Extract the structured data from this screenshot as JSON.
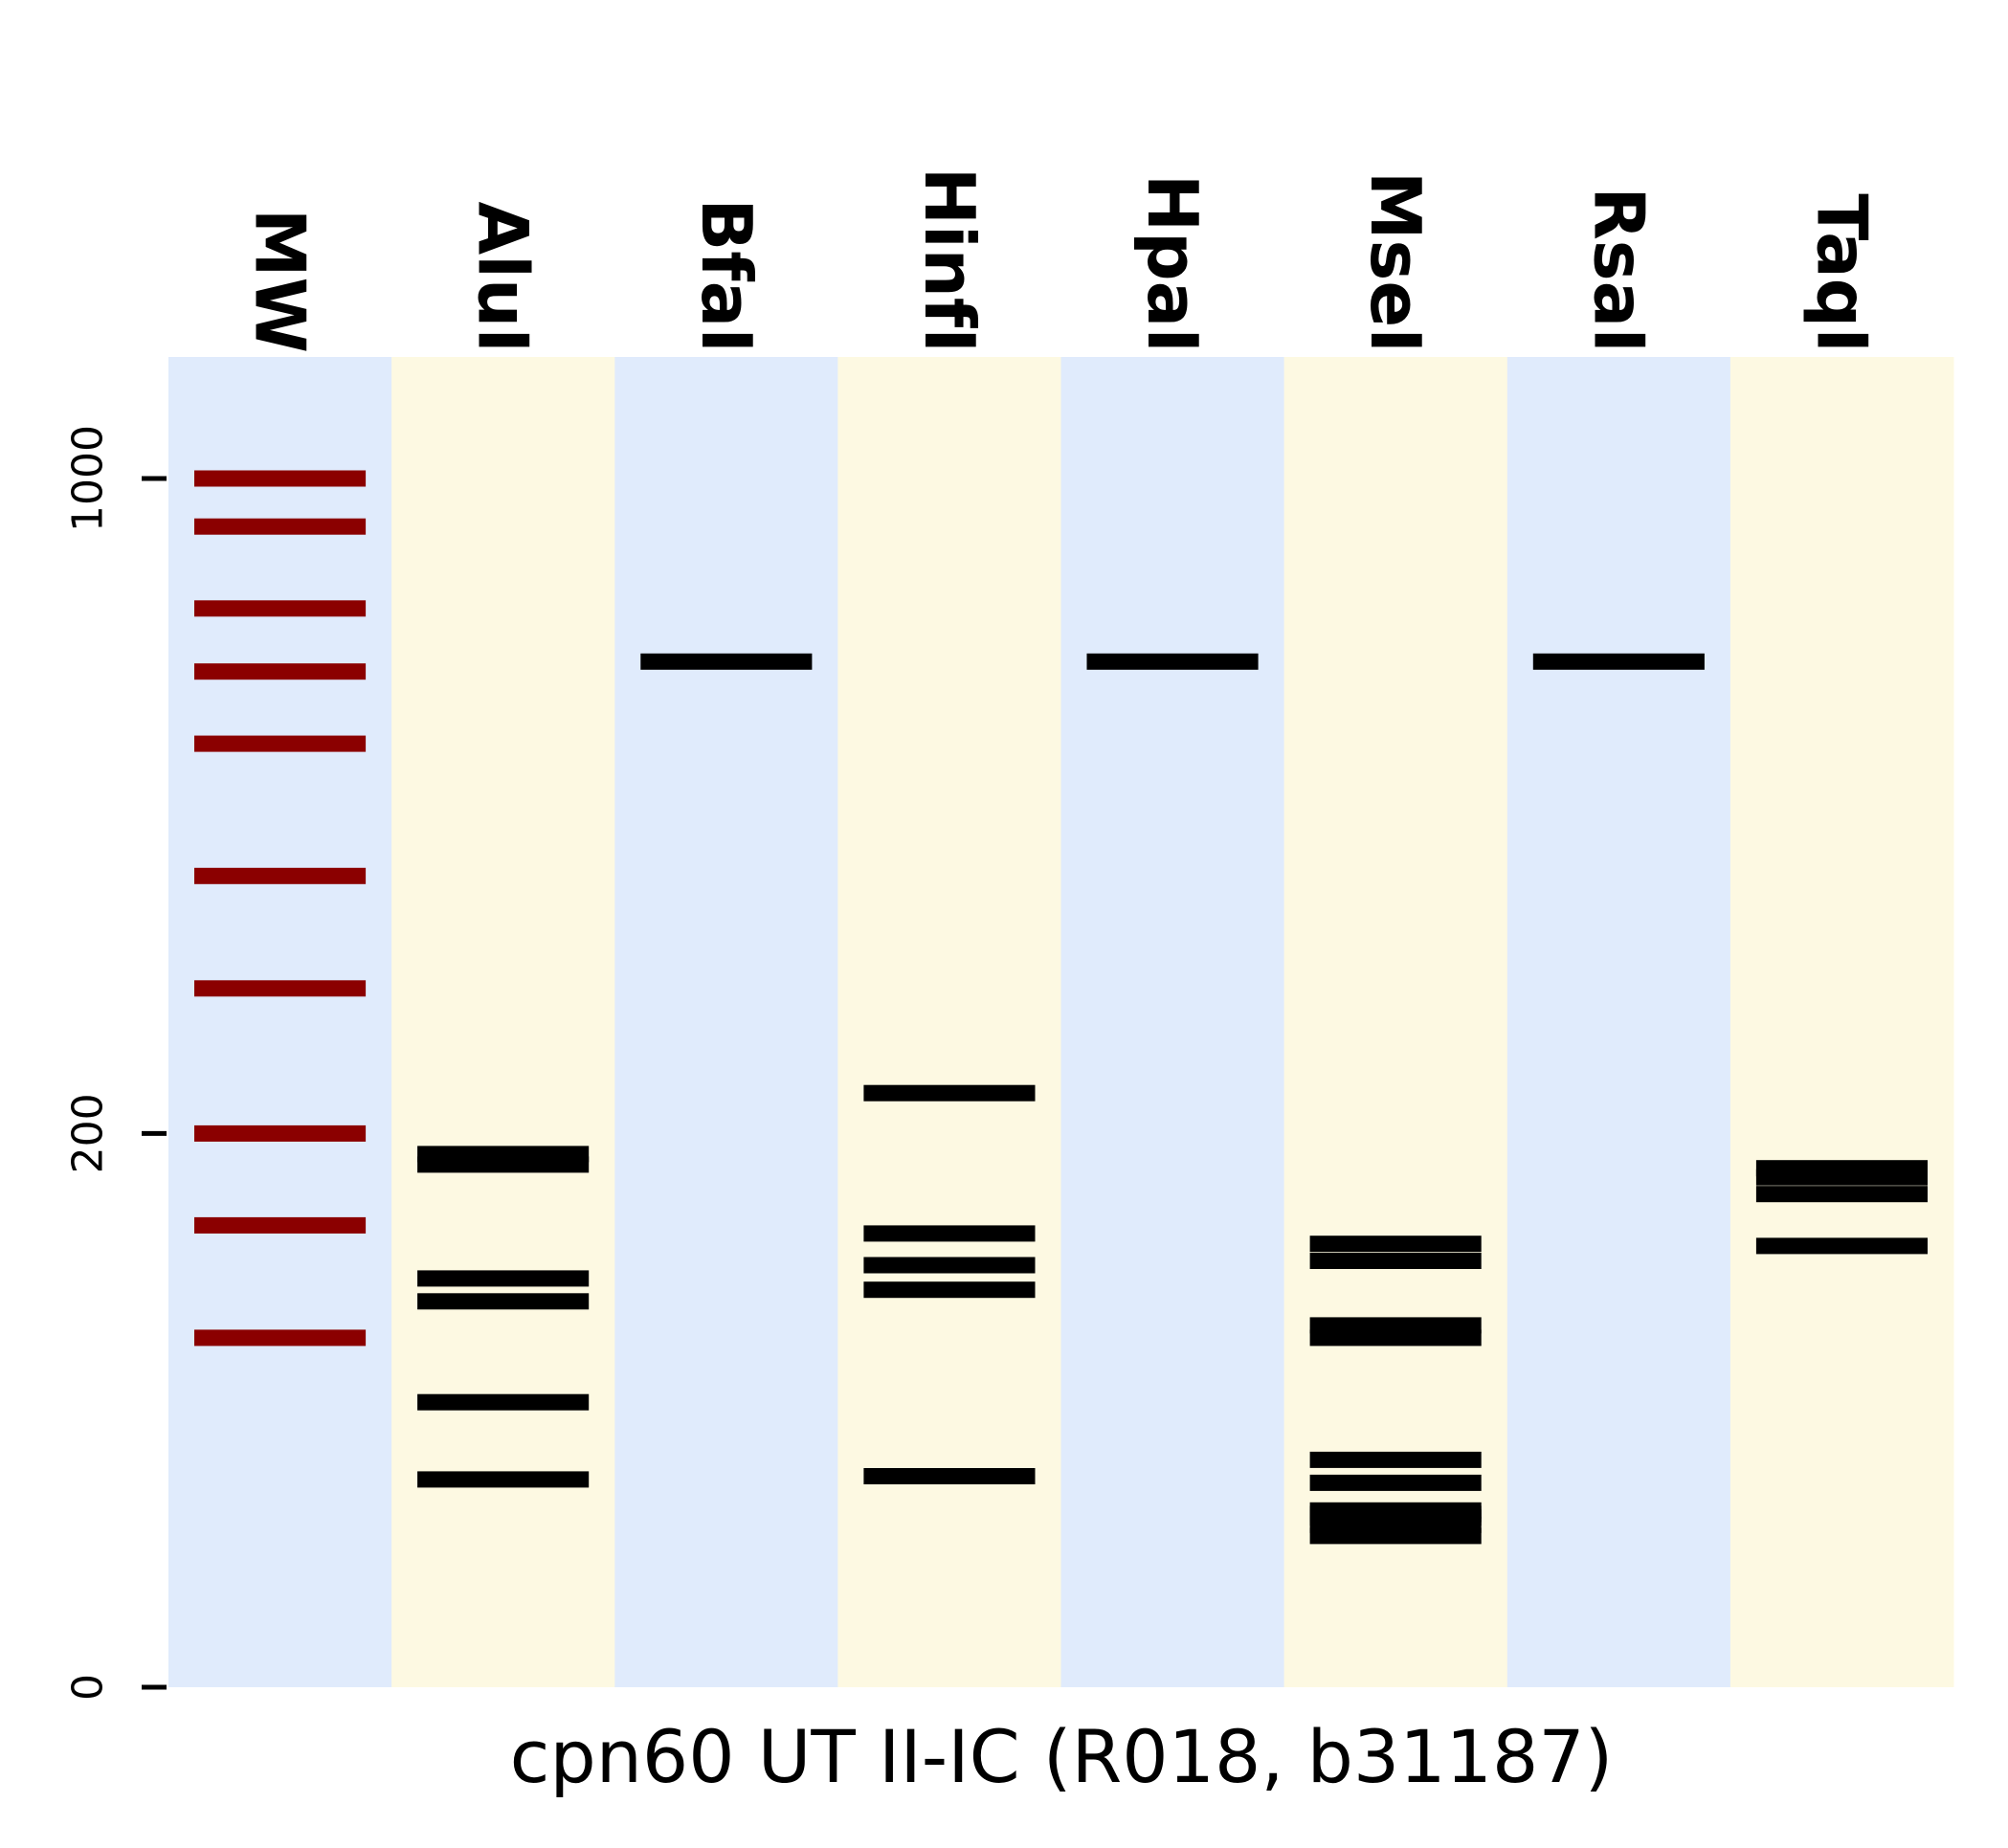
{
  "chart_data": {
    "type": "gel",
    "title": "",
    "xlabel": "cpn60 UT II-IC (R018, b31187)",
    "ylabel": "",
    "y_scale": "log10(value + 100)",
    "ylim": [
      0,
      1300
    ],
    "y_ticks": [
      {
        "value": 0,
        "label": "0"
      },
      {
        "value": 200,
        "label": "200"
      },
      {
        "value": 1000,
        "label": "1000"
      }
    ],
    "colors": {
      "lane_blue": "#e0ebfc",
      "lane_yellow": "#fdf9e2",
      "marker_band": "#8b0000",
      "sample_band": "#000000"
    },
    "lanes": [
      {
        "name": "MW",
        "bg": "lane_blue",
        "band_color": "marker_band",
        "bands": [
          1000,
          900,
          750,
          650,
          550,
          400,
          300,
          200,
          150,
          100
        ]
      },
      {
        "name": "AluI",
        "bg": "lane_yellow",
        "band_color": "sample_band",
        "bands": [
          188,
          182,
          125,
          115,
          76,
          51
        ]
      },
      {
        "name": "BfaI",
        "bg": "lane_blue",
        "band_color": "sample_band",
        "bands": [
          665
        ]
      },
      {
        "name": "HinfI",
        "bg": "lane_yellow",
        "band_color": "sample_band",
        "bands": [
          225,
          146,
          131,
          120,
          52
        ]
      },
      {
        "name": "HpaI",
        "bg": "lane_blue",
        "band_color": "sample_band",
        "bands": [
          665
        ]
      },
      {
        "name": "MseI",
        "bg": "lane_yellow",
        "band_color": "sample_band",
        "bands": [
          141,
          133,
          105,
          100,
          57,
          50,
          42,
          41,
          40,
          38,
          35
        ]
      },
      {
        "name": "RsaI",
        "bg": "lane_blue",
        "band_color": "sample_band",
        "bands": [
          665
        ]
      },
      {
        "name": "TaqI",
        "bg": "lane_yellow",
        "band_color": "sample_band",
        "bands": [
          180,
          175,
          166,
          140
        ]
      }
    ]
  }
}
